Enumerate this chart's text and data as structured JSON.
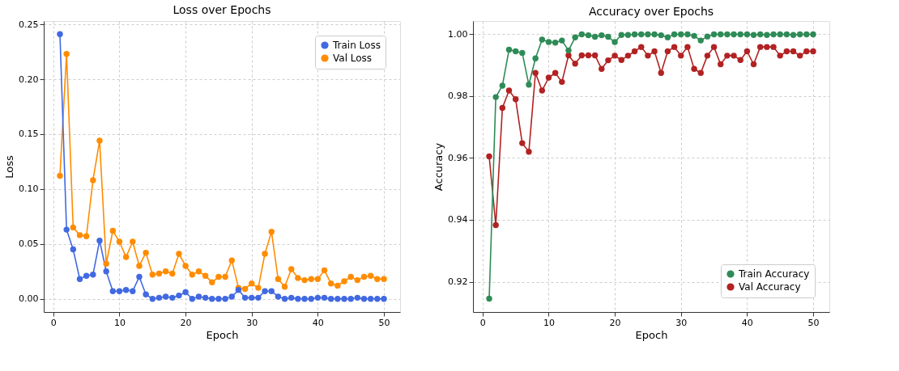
{
  "chart_data": [
    {
      "type": "line",
      "title": "Loss over Epochs",
      "xlabel": "Epoch",
      "ylabel": "Loss",
      "x": [
        1,
        2,
        3,
        4,
        5,
        6,
        7,
        8,
        9,
        10,
        11,
        12,
        13,
        14,
        15,
        16,
        17,
        18,
        19,
        20,
        21,
        22,
        23,
        24,
        25,
        26,
        27,
        28,
        29,
        30,
        31,
        32,
        33,
        34,
        35,
        36,
        37,
        38,
        39,
        40,
        41,
        42,
        43,
        44,
        45,
        46,
        47,
        48,
        49,
        50
      ],
      "series": [
        {
          "name": "Train Loss",
          "color": "#4169e1",
          "values": [
            0.241,
            0.063,
            0.045,
            0.018,
            0.021,
            0.022,
            0.053,
            0.025,
            0.007,
            0.007,
            0.008,
            0.007,
            0.02,
            0.004,
            0.0,
            0.001,
            0.002,
            0.001,
            0.003,
            0.006,
            0.0,
            0.002,
            0.001,
            0.0,
            0.0,
            0.0,
            0.002,
            0.008,
            0.001,
            0.001,
            0.001,
            0.007,
            0.007,
            0.002,
            0.0,
            0.001,
            0.0,
            0.0,
            0.0,
            0.001,
            0.001,
            0.0,
            0.0,
            0.0,
            0.0,
            0.001,
            0.0,
            0.0,
            0.0,
            0.0
          ]
        },
        {
          "name": "Val Loss",
          "color": "#ff8c00",
          "values": [
            0.112,
            0.223,
            0.065,
            0.058,
            0.057,
            0.108,
            0.144,
            0.032,
            0.062,
            0.052,
            0.038,
            0.052,
            0.03,
            0.042,
            0.022,
            0.023,
            0.025,
            0.023,
            0.041,
            0.03,
            0.022,
            0.025,
            0.021,
            0.015,
            0.02,
            0.02,
            0.035,
            0.01,
            0.009,
            0.014,
            0.01,
            0.041,
            0.061,
            0.018,
            0.011,
            0.027,
            0.019,
            0.017,
            0.018,
            0.018,
            0.026,
            0.014,
            0.012,
            0.016,
            0.02,
            0.017,
            0.02,
            0.021,
            0.018,
            0.018
          ]
        }
      ],
      "xlim": [
        -1.45,
        52.45
      ],
      "xticks": [
        0,
        10,
        20,
        30,
        40,
        50
      ],
      "ylim": [
        -0.012,
        0.253
      ],
      "yticks": [
        {
          "value": 0,
          "label": "0.00"
        },
        {
          "value": 0.05,
          "label": "0.05"
        },
        {
          "value": 0.1,
          "label": "0.10"
        },
        {
          "value": 0.15,
          "label": "0.15"
        },
        {
          "value": 0.2,
          "label": "0.20"
        },
        {
          "value": 0.25,
          "label": "0.25"
        }
      ],
      "grid": true,
      "legend": "top right",
      "marker": "circle",
      "line_style": "solid"
    },
    {
      "type": "line",
      "title": "Accuracy over Epochs",
      "xlabel": "Epoch",
      "ylabel": "Accuracy",
      "x": [
        1,
        2,
        3,
        4,
        5,
        6,
        7,
        8,
        9,
        10,
        11,
        12,
        13,
        14,
        15,
        16,
        17,
        18,
        19,
        20,
        21,
        22,
        23,
        24,
        25,
        26,
        27,
        28,
        29,
        30,
        31,
        32,
        33,
        34,
        35,
        36,
        37,
        38,
        39,
        40,
        41,
        42,
        43,
        44,
        45,
        46,
        47,
        48,
        49,
        50
      ],
      "series": [
        {
          "name": "Train Accuracy",
          "color": "#2e8b57",
          "values": [
            0.9145,
            0.9797,
            0.9834,
            0.995,
            0.9945,
            0.994,
            0.9837,
            0.9922,
            0.9983,
            0.9975,
            0.9973,
            0.998,
            0.9948,
            0.999,
            1.0,
            0.9997,
            0.9992,
            0.9997,
            0.9992,
            0.9975,
            0.9998,
            0.9998,
            1.0,
            1.0,
            1.0,
            1.0,
            0.9997,
            0.999,
            1.0,
            1.0,
            1.0,
            0.9995,
            0.998,
            0.9993,
            1.0,
            1.0,
            1.0,
            1.0,
            1.0,
            1.0,
            0.9998,
            1.0,
            0.9998,
            1.0,
            1.0,
            1.0,
            0.9998,
            1.0,
            1.0,
            1.0
          ]
        },
        {
          "name": "Val Accuracy",
          "color": "#b22222",
          "values": [
            0.9605,
            0.9383,
            0.9762,
            0.9818,
            0.979,
            0.9648,
            0.962,
            0.9875,
            0.9818,
            0.986,
            0.9875,
            0.9846,
            0.9932,
            0.9905,
            0.9932,
            0.9932,
            0.9932,
            0.9888,
            0.9916,
            0.9931,
            0.9917,
            0.9931,
            0.9945,
            0.9959,
            0.9931,
            0.9945,
            0.9875,
            0.9945,
            0.9959,
            0.9931,
            0.9959,
            0.9888,
            0.9875,
            0.9931,
            0.9959,
            0.9903,
            0.9931,
            0.9931,
            0.9917,
            0.9945,
            0.9903,
            0.9959,
            0.9959,
            0.9959,
            0.9931,
            0.9945,
            0.9945,
            0.9931,
            0.9945,
            0.9945
          ]
        }
      ],
      "xlim": [
        -1.45,
        52.45
      ],
      "xticks": [
        0,
        10,
        20,
        30,
        40,
        50
      ],
      "ylim": [
        0.9102,
        1.0043
      ],
      "yticks": [
        {
          "value": 0.92,
          "label": "0.92"
        },
        {
          "value": 0.94,
          "label": "0.94"
        },
        {
          "value": 0.96,
          "label": "0.96"
        },
        {
          "value": 0.98,
          "label": "0.98"
        },
        {
          "value": 1.0,
          "label": "1.00"
        }
      ],
      "grid": true,
      "legend": "bottom right",
      "marker": "circle",
      "line_style": "solid"
    }
  ]
}
